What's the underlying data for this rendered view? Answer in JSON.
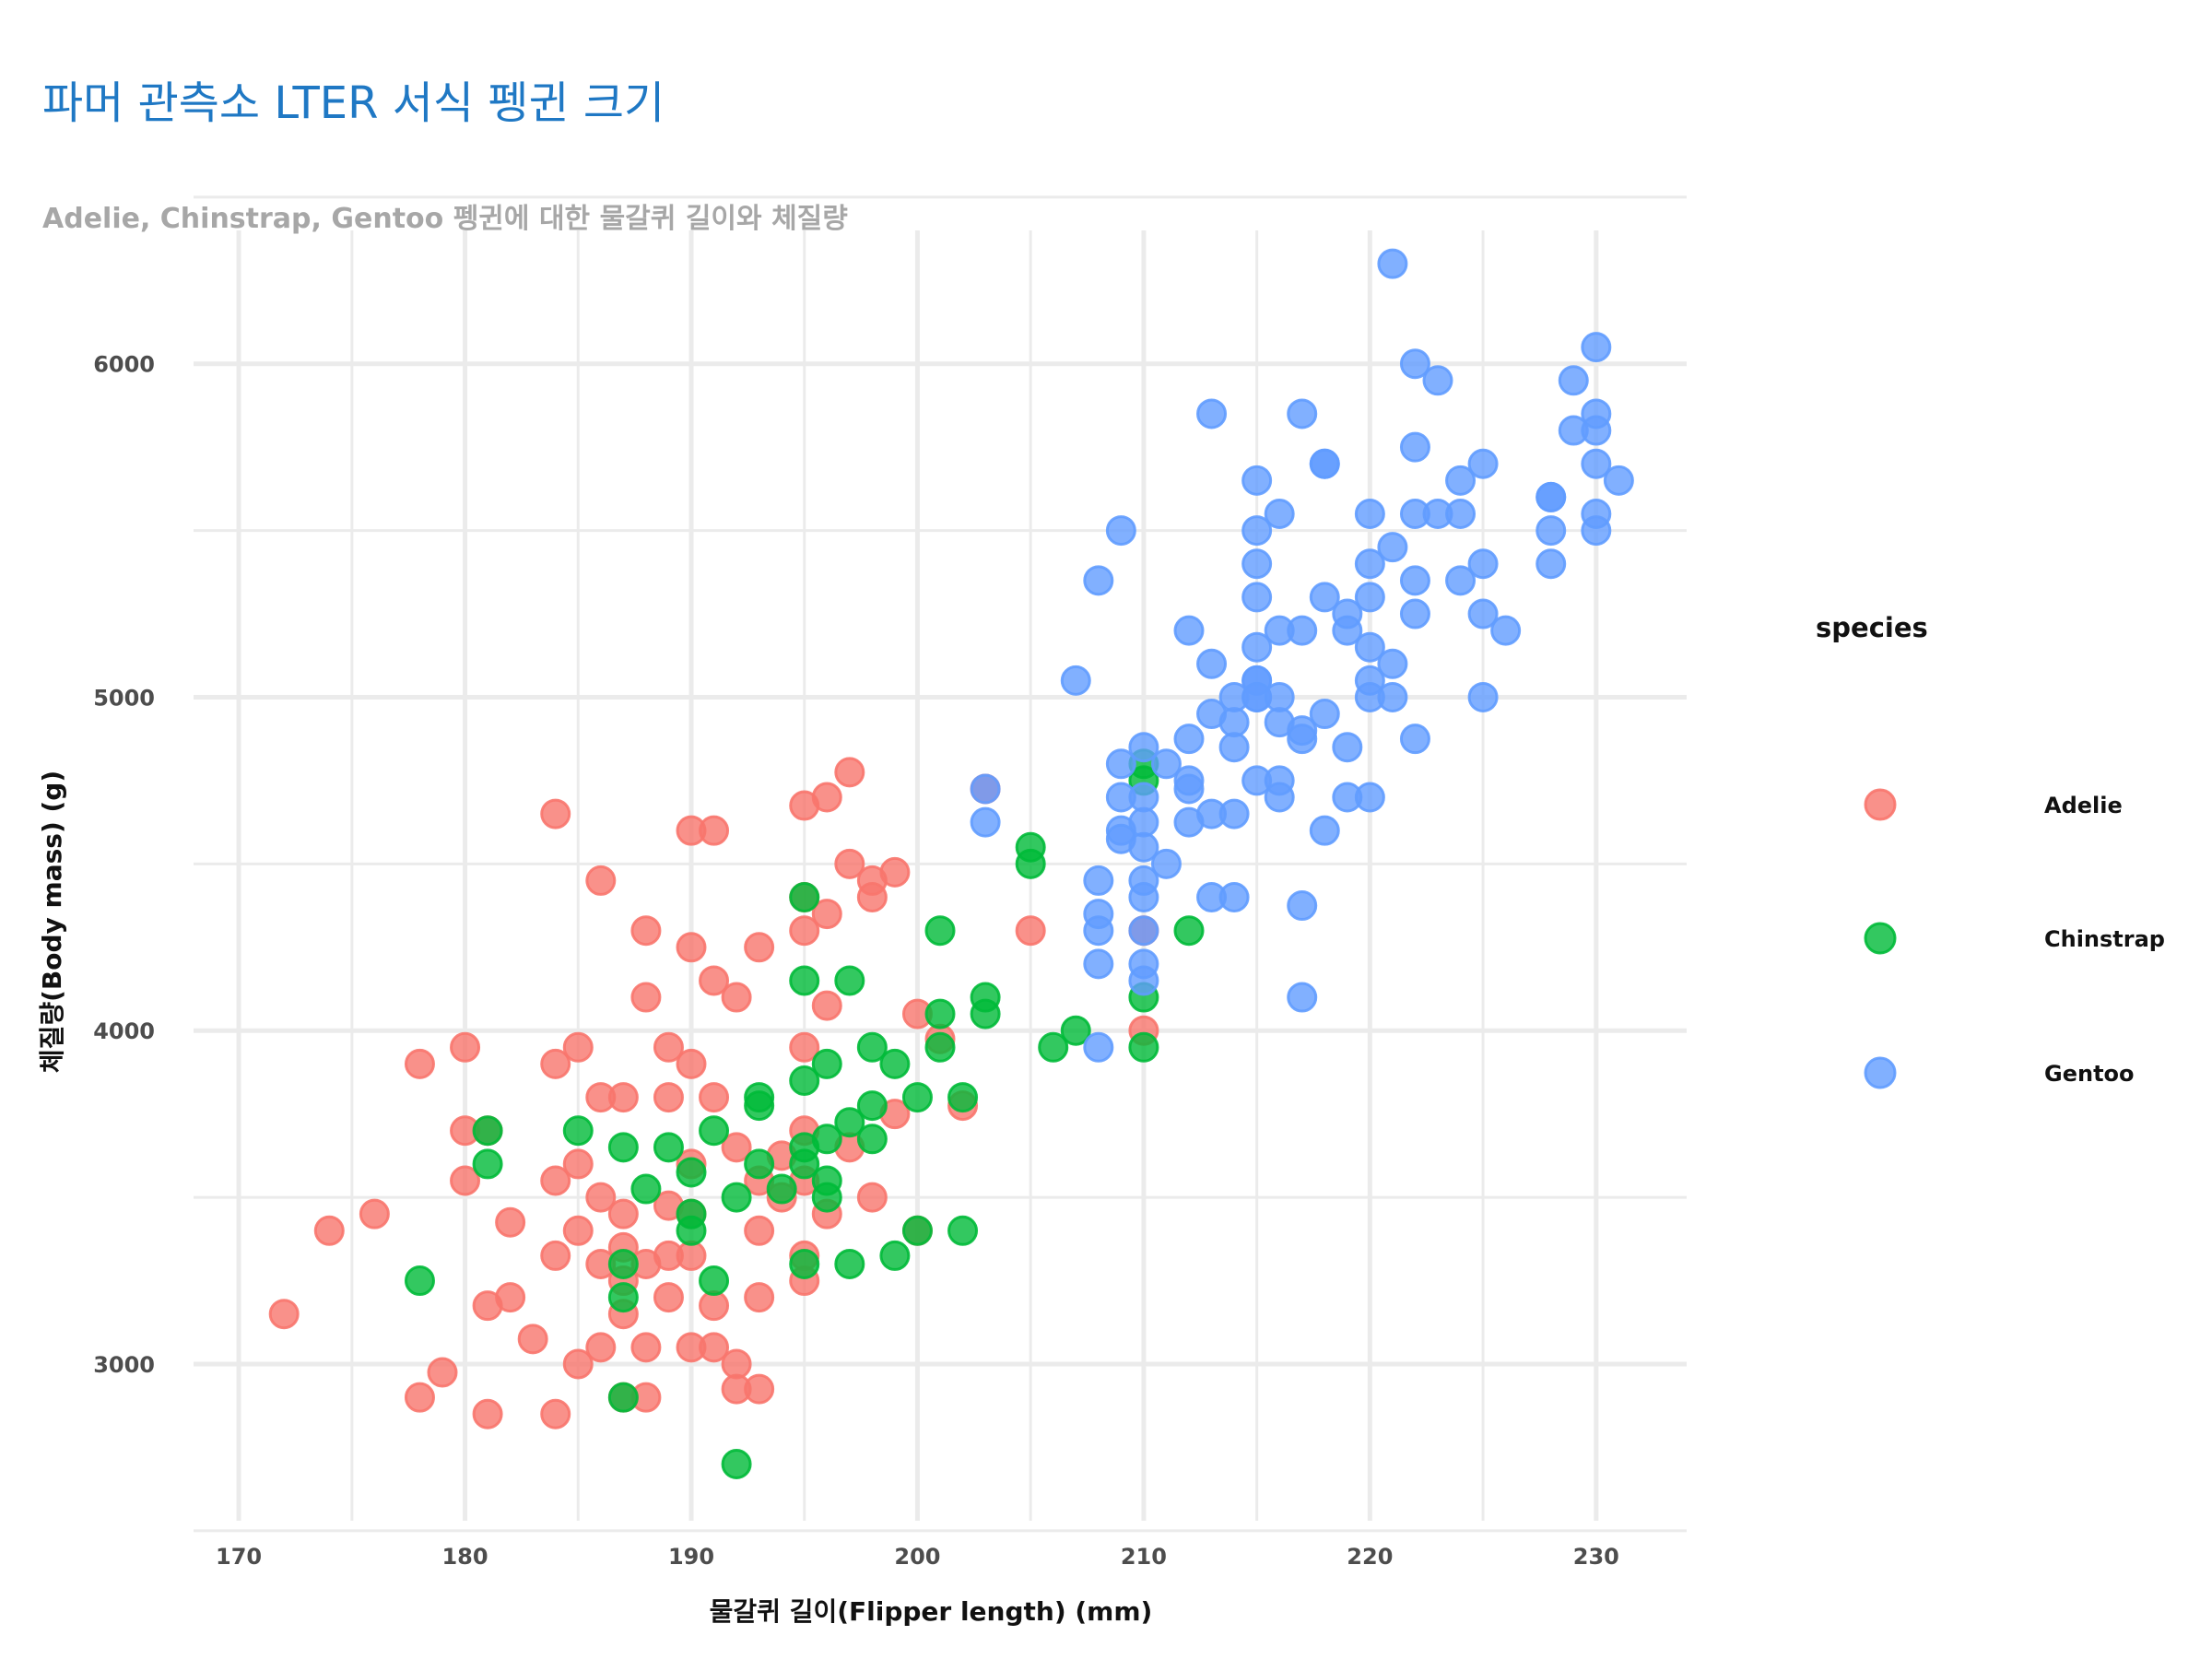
{
  "chart_data": {
    "type": "scatter",
    "title": "파머 관측소 LTER 서식 펭귄 크기",
    "subtitle": "Adelie, Chinstrap, Gentoo 펭귄에 대한 물갈퀴 길이와 체질량",
    "xlabel": "물갈퀴 길이(Flipper length) (mm)",
    "ylabel": "체질량(Body mass) (g)",
    "xlim": [
      168,
      234
    ],
    "ylim": [
      2530,
      6400
    ],
    "xticks": [
      170,
      180,
      190,
      200,
      210,
      220,
      230
    ],
    "yticks": [
      3000,
      4000,
      5000,
      6000
    ],
    "grid": true,
    "legend": {
      "title": "species",
      "placement": "right",
      "entries": [
        "Adelie",
        "Chinstrap",
        "Gentoo"
      ]
    },
    "series": [
      {
        "name": "Adelie",
        "color": "#F8766D",
        "x": [
          172,
          174,
          176,
          178,
          178,
          179,
          180,
          180,
          180,
          181,
          181,
          181,
          182,
          182,
          183,
          184,
          184,
          184,
          184,
          184,
          185,
          185,
          185,
          185,
          186,
          186,
          186,
          186,
          186,
          187,
          187,
          187,
          187,
          187,
          187,
          188,
          188,
          188,
          188,
          188,
          189,
          189,
          189,
          189,
          189,
          190,
          190,
          190,
          190,
          190,
          190,
          190,
          191,
          191,
          191,
          191,
          191,
          192,
          192,
          192,
          192,
          193,
          193,
          193,
          193,
          193,
          194,
          194,
          195,
          195,
          195,
          195,
          195,
          195,
          195,
          195,
          196,
          196,
          196,
          196,
          197,
          197,
          197,
          198,
          198,
          198,
          199,
          199,
          200,
          200,
          201,
          202,
          203,
          205,
          210,
          210
        ],
        "y": [
          3150,
          3400,
          3450,
          2900,
          3900,
          2975,
          3550,
          3700,
          3950,
          2850,
          3175,
          3700,
          3200,
          3425,
          3075,
          2850,
          3325,
          3550,
          3900,
          4650,
          3000,
          3400,
          3600,
          3950,
          3050,
          3300,
          3500,
          3800,
          4450,
          2900,
          3150,
          3250,
          3350,
          3450,
          3800,
          2900,
          3050,
          3300,
          4100,
          4300,
          3200,
          3325,
          3475,
          3800,
          3950,
          3050,
          3325,
          3450,
          3600,
          3900,
          4250,
          4600,
          3050,
          3175,
          3800,
          4150,
          4600,
          2925,
          3000,
          3650,
          4100,
          2925,
          3200,
          3400,
          3550,
          4250,
          3500,
          3625,
          3250,
          3325,
          3550,
          3950,
          4300,
          4400,
          4675,
          3700,
          3450,
          4075,
          4350,
          4700,
          3650,
          4500,
          4775,
          3500,
          4400,
          4450,
          3750,
          4475,
          3400,
          4050,
          3975,
          3775,
          4725,
          4300,
          4000,
          4300
        ]
      },
      {
        "name": "Chinstrap",
        "color": "#00BA38",
        "x": [
          178,
          181,
          181,
          185,
          187,
          187,
          187,
          187,
          188,
          189,
          190,
          190,
          190,
          191,
          191,
          192,
          192,
          193,
          193,
          193,
          194,
          195,
          195,
          195,
          195,
          195,
          195,
          196,
          196,
          196,
          196,
          197,
          197,
          197,
          198,
          198,
          198,
          199,
          199,
          200,
          200,
          201,
          201,
          201,
          202,
          202,
          203,
          203,
          205,
          205,
          206,
          207,
          210,
          210,
          210,
          210,
          212
        ],
        "y": [
          3250,
          3600,
          3700,
          3700,
          2900,
          3200,
          3300,
          3650,
          3525,
          3650,
          3400,
          3450,
          3575,
          3250,
          3700,
          2700,
          3500,
          3600,
          3775,
          3800,
          3525,
          3300,
          3600,
          3650,
          3850,
          4150,
          4400,
          3550,
          3675,
          3500,
          3900,
          3300,
          3725,
          4150,
          3675,
          3775,
          3950,
          3325,
          3900,
          3400,
          3800,
          3950,
          4050,
          4300,
          3400,
          3800,
          4050,
          4100,
          4500,
          4550,
          3950,
          4000,
          3950,
          4100,
          4800,
          4750,
          4300
        ]
      },
      {
        "name": "Gentoo",
        "color": "#619CFF",
        "x": [
          203,
          203,
          207,
          208,
          208,
          208,
          208,
          208,
          208,
          209,
          209,
          209,
          209,
          209,
          210,
          210,
          210,
          210,
          210,
          210,
          210,
          210,
          210,
          211,
          211,
          212,
          212,
          212,
          212,
          212,
          213,
          213,
          213,
          213,
          213,
          214,
          214,
          214,
          214,
          214,
          215,
          215,
          215,
          215,
          215,
          215,
          215,
          215,
          215,
          215,
          216,
          216,
          216,
          216,
          216,
          216,
          217,
          217,
          217,
          217,
          217,
          217,
          218,
          218,
          218,
          218,
          218,
          219,
          219,
          219,
          219,
          220,
          220,
          220,
          220,
          220,
          220,
          220,
          221,
          221,
          221,
          221,
          222,
          222,
          222,
          222,
          222,
          222,
          223,
          223,
          224,
          224,
          224,
          225,
          225,
          225,
          225,
          226,
          228,
          228,
          228,
          228,
          229,
          229,
          230,
          230,
          230,
          230,
          230,
          230,
          231
        ],
        "y": [
          4625,
          4725,
          5050,
          3950,
          4200,
          4300,
          4350,
          4450,
          5350,
          4600,
          4700,
          4800,
          5500,
          4575,
          4150,
          4200,
          4300,
          4400,
          4450,
          4550,
          4625,
          4700,
          4850,
          4500,
          4800,
          4625,
          4725,
          4750,
          4875,
          5200,
          4400,
          4650,
          4950,
          5100,
          5850,
          4400,
          4650,
          4850,
          4925,
          5000,
          4750,
          5000,
          5050,
          5150,
          5300,
          5400,
          5500,
          5650,
          5050,
          5000,
          4700,
          4750,
          4925,
          5000,
          5200,
          5550,
          4100,
          4375,
          4875,
          4900,
          5200,
          5850,
          4600,
          4950,
          5300,
          5700,
          5700,
          4700,
          4850,
          5200,
          5250,
          4700,
          5000,
          5050,
          5150,
          5300,
          5400,
          5550,
          5000,
          5100,
          5450,
          6300,
          4875,
          5250,
          5350,
          5550,
          5750,
          6000,
          5550,
          5950,
          5350,
          5550,
          5650,
          5000,
          5250,
          5400,
          5700,
          5200,
          5400,
          5500,
          5600,
          5600,
          5800,
          5950,
          5500,
          5550,
          5700,
          5800,
          5850,
          6050,
          5650
        ]
      }
    ]
  }
}
